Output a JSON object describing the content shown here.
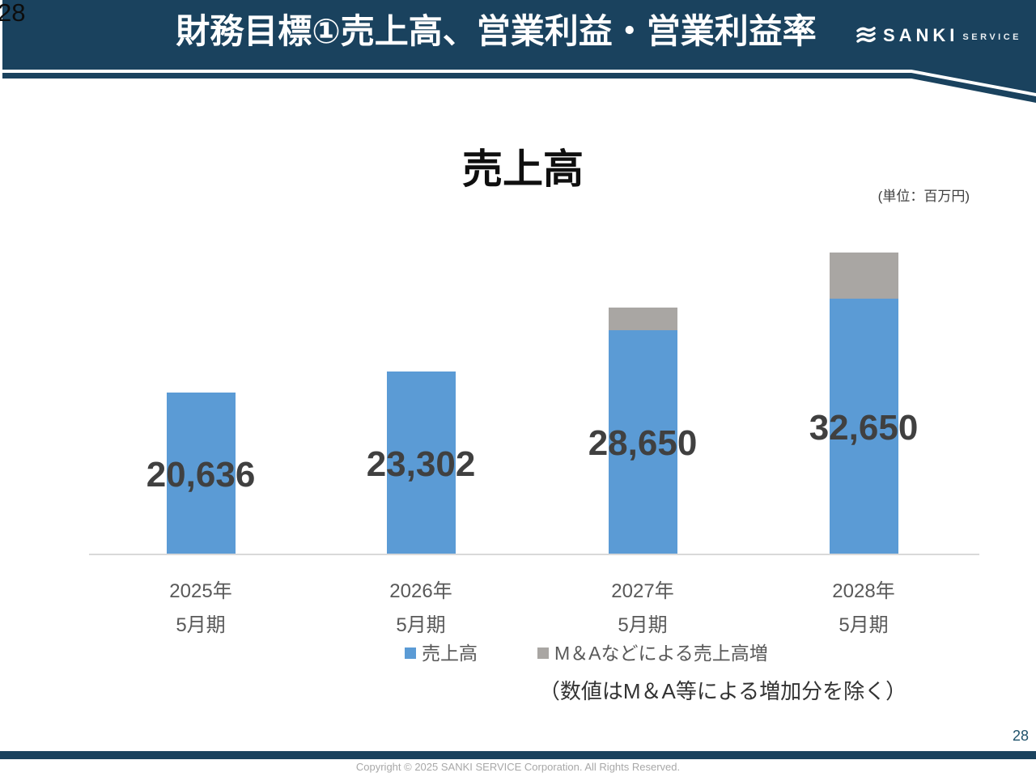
{
  "colors": {
    "navy": "#1A425E",
    "bar_blue": "#5B9BD5",
    "bar_gray": "#A9A6A3",
    "value_label": "#404040",
    "axis_label": "#595959",
    "baseline": "#D9D9D9",
    "page_number_footer": "#1F526B",
    "copyright_gray": "#A8A8A8"
  },
  "slide": {
    "page_number_top": "28",
    "page_number_bottom": "28",
    "header": {
      "title": "財務目標①売上高、営業利益・営業利益率",
      "brand": {
        "name": "SANKI",
        "sub": "SERVICE",
        "icon": "sanki-waves-icon"
      }
    },
    "footer": {
      "copyright": "Copyright © 2025 SANKI SERVICE Corporation. All Rights Reserved."
    }
  },
  "chart_data": {
    "type": "bar",
    "stacked": true,
    "title": "売上高",
    "unit_label": "(単位：百万円)",
    "categories": [
      "2025年5月期",
      "2026年5月期",
      "2027年5月期",
      "2028年5月期"
    ],
    "categories_line1": [
      "2025年",
      "2026年",
      "2027年",
      "2028年"
    ],
    "categories_line2": [
      "5月期",
      "5月期",
      "5月期",
      "5月期"
    ],
    "series": [
      {
        "name": "売上高",
        "color": "#5B9BD5",
        "values": [
          20636,
          23302,
          28650,
          32650
        ],
        "value_labels": [
          "20,636",
          "23,302",
          "28,650",
          "32,650"
        ]
      },
      {
        "name": "M＆Aなどによる売上高増",
        "color": "#A9A6A3",
        "values": [
          0,
          0,
          2900,
          5900
        ],
        "value_labels": [
          "",
          "",
          "",
          ""
        ]
      }
    ],
    "note": "（数値はM＆A等による増加分を除く）",
    "ylim": [
      0,
      36000
    ],
    "grid": false,
    "legend_position": "bottom"
  }
}
